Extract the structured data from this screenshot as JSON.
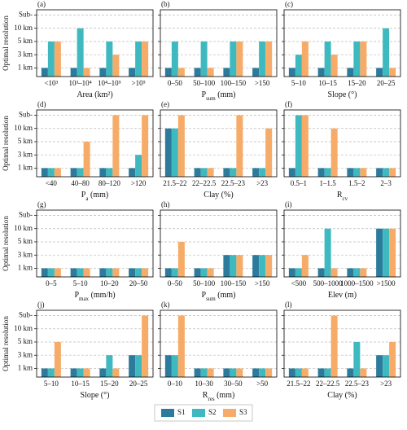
{
  "chart_data": [
    {
      "type": "bar",
      "panel": "(a)",
      "ylabel": "Optimal resolution",
      "xlabel": "Area (km²)",
      "categories": [
        "<10³",
        "10³–10⁴",
        "10⁴–10⁵",
        ">10⁵"
      ],
      "series": [
        {
          "name": "S1",
          "color": "#2c7b9c",
          "values": [
            1,
            1,
            1,
            1
          ]
        },
        {
          "name": "S2",
          "color": "#3fb9c0",
          "values": [
            3,
            4,
            3,
            3
          ]
        },
        {
          "name": "S3",
          "color": "#f6ac68",
          "values": [
            3,
            1,
            2,
            3
          ]
        }
      ],
      "ylim": [
        0.35,
        5.4
      ],
      "yticks": [
        {
          "value": 1,
          "label": "1 km"
        },
        {
          "value": 2,
          "label": "3 km"
        },
        {
          "value": 3,
          "label": "5 km"
        },
        {
          "value": 4,
          "label": "10 km"
        },
        {
          "value": 5,
          "label": "Sub-"
        }
      ],
      "grid": true
    },
    {
      "type": "bar",
      "panel": "(b)",
      "xlabel": "P",
      "xlabel_sub": "sum",
      "xlabel_tail": " (mm)",
      "categories": [
        "0–50",
        "50–100",
        "100–150",
        ">150"
      ],
      "series": [
        {
          "name": "S1",
          "color": "#2c7b9c",
          "values": [
            1,
            1,
            1,
            1
          ]
        },
        {
          "name": "S2",
          "color": "#3fb9c0",
          "values": [
            3,
            3,
            3,
            3
          ]
        },
        {
          "name": "S3",
          "color": "#f6ac68",
          "values": [
            1,
            1,
            3,
            3
          ]
        }
      ],
      "ylim": [
        0.35,
        5.4
      ],
      "yticks": [
        1,
        2,
        3,
        4,
        5
      ],
      "grid": true
    },
    {
      "type": "bar",
      "panel": "(c)",
      "xlabel": "Slope (°)",
      "categories": [
        "5–10",
        "10–15",
        "15–20",
        "20–25"
      ],
      "series": [
        {
          "name": "S1",
          "color": "#2c7b9c",
          "values": [
            1,
            1,
            1,
            1
          ]
        },
        {
          "name": "S2",
          "color": "#3fb9c0",
          "values": [
            2,
            3,
            3,
            4
          ]
        },
        {
          "name": "S3",
          "color": "#f6ac68",
          "values": [
            3,
            2,
            3,
            1
          ]
        }
      ],
      "ylim": [
        0.35,
        5.4
      ],
      "yticks": [
        1,
        2,
        3,
        4,
        5
      ],
      "grid": true
    },
    {
      "type": "bar",
      "panel": "(d)",
      "ylabel": "Optimal resolution",
      "xlabel": "P",
      "xlabel_sub": "a",
      "xlabel_tail": " (mm)",
      "categories": [
        "<40",
        "40–80",
        "80–120",
        ">120"
      ],
      "series": [
        {
          "name": "S1",
          "color": "#2c7b9c",
          "values": [
            1,
            1,
            1,
            1
          ]
        },
        {
          "name": "S2",
          "color": "#3fb9c0",
          "values": [
            1,
            1,
            1,
            2
          ]
        },
        {
          "name": "S3",
          "color": "#f6ac68",
          "values": [
            1,
            3,
            5,
            5
          ]
        }
      ],
      "ylim": [
        0.35,
        5.4
      ],
      "yticks": [
        {
          "value": 1,
          "label": "1 km"
        },
        {
          "value": 2,
          "label": "3 km"
        },
        {
          "value": 3,
          "label": "5 km"
        },
        {
          "value": 4,
          "label": "10 km"
        },
        {
          "value": 5,
          "label": "Sub-"
        }
      ],
      "grid": true
    },
    {
      "type": "bar",
      "panel": "(e)",
      "xlabel": "Clay (%)",
      "categories": [
        "21.5–22",
        "22–22.5",
        "22.5–23",
        ">23"
      ],
      "series": [
        {
          "name": "S1",
          "color": "#2c7b9c",
          "values": [
            4,
            1,
            1,
            1
          ]
        },
        {
          "name": "S2",
          "color": "#3fb9c0",
          "values": [
            4,
            1,
            1,
            1
          ]
        },
        {
          "name": "S3",
          "color": "#f6ac68",
          "values": [
            5,
            1,
            5,
            4
          ]
        }
      ],
      "ylim": [
        0.35,
        5.4
      ],
      "yticks": [
        1,
        2,
        3,
        4,
        5
      ],
      "grid": true
    },
    {
      "type": "bar",
      "panel": "(f)",
      "xlabel": "R",
      "xlabel_sub": "cv",
      "categories": [
        "0.5–1",
        "1–1.5",
        "1.5–2",
        "2–3"
      ],
      "series": [
        {
          "name": "S1",
          "color": "#2c7b9c",
          "values": [
            1,
            1,
            1,
            1
          ]
        },
        {
          "name": "S2",
          "color": "#3fb9c0",
          "values": [
            5,
            1,
            1,
            1
          ]
        },
        {
          "name": "S3",
          "color": "#f6ac68",
          "values": [
            5,
            4,
            1,
            1
          ]
        }
      ],
      "ylim": [
        0.35,
        5.4
      ],
      "yticks": [
        1,
        2,
        3,
        4,
        5
      ],
      "grid": true
    },
    {
      "type": "bar",
      "panel": "(g)",
      "ylabel": "Optimal resolution",
      "xlabel": "P",
      "xlabel_sub": "max",
      "xlabel_tail": " (mm/h)",
      "categories": [
        "0–5",
        "5–10",
        "10–20",
        "20–50"
      ],
      "series": [
        {
          "name": "S1",
          "color": "#2c7b9c",
          "values": [
            1,
            1,
            1,
            1
          ]
        },
        {
          "name": "S2",
          "color": "#3fb9c0",
          "values": [
            1,
            1,
            1,
            1
          ]
        },
        {
          "name": "S3",
          "color": "#f6ac68",
          "values": [
            1,
            1,
            1,
            1
          ]
        }
      ],
      "ylim": [
        0.35,
        5.4
      ],
      "yticks": [
        {
          "value": 1,
          "label": "1 km"
        },
        {
          "value": 2,
          "label": "3 km"
        },
        {
          "value": 3,
          "label": "5 km"
        },
        {
          "value": 4,
          "label": "10 km"
        },
        {
          "value": 5,
          "label": "Sub-"
        }
      ],
      "grid": true
    },
    {
      "type": "bar",
      "panel": "(h)",
      "xlabel": "P",
      "xlabel_sub": "sum",
      "xlabel_tail": " (mm)",
      "categories": [
        "0–50",
        "50–100",
        "100–150",
        ">150"
      ],
      "series": [
        {
          "name": "S1",
          "color": "#2c7b9c",
          "values": [
            1,
            1,
            2,
            2
          ]
        },
        {
          "name": "S2",
          "color": "#3fb9c0",
          "values": [
            1,
            1,
            2,
            2
          ]
        },
        {
          "name": "S3",
          "color": "#f6ac68",
          "values": [
            3,
            1,
            2,
            2
          ]
        }
      ],
      "ylim": [
        0.35,
        5.4
      ],
      "yticks": [
        1,
        2,
        3,
        4,
        5
      ],
      "grid": true
    },
    {
      "type": "bar",
      "panel": "(i)",
      "xlabel": "Elev (m)",
      "categories": [
        "<500",
        "500–1000",
        "1000–1500",
        ">1500"
      ],
      "series": [
        {
          "name": "S1",
          "color": "#2c7b9c",
          "values": [
            1,
            1,
            1,
            4
          ]
        },
        {
          "name": "S2",
          "color": "#3fb9c0",
          "values": [
            1,
            4,
            1,
            4
          ]
        },
        {
          "name": "S3",
          "color": "#f6ac68",
          "values": [
            2,
            1,
            1,
            4
          ]
        }
      ],
      "ylim": [
        0.35,
        5.4
      ],
      "yticks": [
        1,
        2,
        3,
        4,
        5
      ],
      "grid": true
    },
    {
      "type": "bar",
      "panel": "(j)",
      "ylabel": "Optimal resolution",
      "xlabel": "Slope (°)",
      "categories": [
        "5–10",
        "10–15",
        "15–20",
        "20–25"
      ],
      "series": [
        {
          "name": "S1",
          "color": "#2c7b9c",
          "values": [
            1,
            1,
            1,
            2
          ]
        },
        {
          "name": "S2",
          "color": "#3fb9c0",
          "values": [
            1,
            1,
            2,
            2
          ]
        },
        {
          "name": "S3",
          "color": "#f6ac68",
          "values": [
            3,
            1,
            1,
            5
          ]
        }
      ],
      "ylim": [
        0.35,
        5.4
      ],
      "yticks": [
        {
          "value": 1,
          "label": "1 km"
        },
        {
          "value": 2,
          "label": "3 km"
        },
        {
          "value": 3,
          "label": "5 km"
        },
        {
          "value": 4,
          "label": "10 km"
        },
        {
          "value": 5,
          "label": "Sub-"
        }
      ],
      "grid": true
    },
    {
      "type": "bar",
      "panel": "(k)",
      "xlabel": "R",
      "xlabel_sub": "res",
      "xlabel_tail": " (mm)",
      "categories": [
        "0–10",
        "10–30",
        "30–50",
        ">50"
      ],
      "series": [
        {
          "name": "S1",
          "color": "#2c7b9c",
          "values": [
            2,
            1,
            1,
            1
          ]
        },
        {
          "name": "S2",
          "color": "#3fb9c0",
          "values": [
            2,
            1,
            1,
            1
          ]
        },
        {
          "name": "S3",
          "color": "#f6ac68",
          "values": [
            5,
            1,
            1,
            1
          ]
        }
      ],
      "ylim": [
        0.35,
        5.4
      ],
      "yticks": [
        1,
        2,
        3,
        4,
        5
      ],
      "grid": true
    },
    {
      "type": "bar",
      "panel": "(l)",
      "xlabel": "Clay (%)",
      "categories": [
        "21.5–22",
        "22–22.5",
        "22.5–23",
        ">23"
      ],
      "series": [
        {
          "name": "S1",
          "color": "#2c7b9c",
          "values": [
            1,
            1,
            1,
            2
          ]
        },
        {
          "name": "S2",
          "color": "#3fb9c0",
          "values": [
            1,
            1,
            3,
            2
          ]
        },
        {
          "name": "S3",
          "color": "#f6ac68",
          "values": [
            1,
            5,
            1,
            3
          ]
        }
      ],
      "ylim": [
        0.35,
        5.4
      ],
      "yticks": [
        1,
        2,
        3,
        4,
        5
      ],
      "grid": true
    }
  ]
}
